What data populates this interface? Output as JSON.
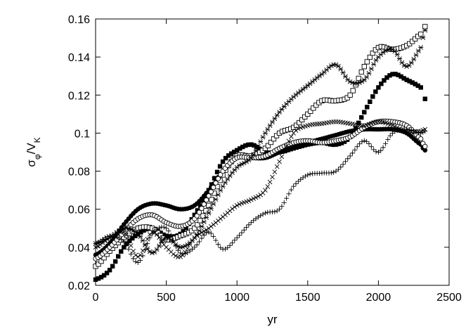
{
  "chart_data": {
    "type": "scatter",
    "title": "",
    "xlabel": "yr",
    "ylabel_main": "σ",
    "ylabel_sub1": "φ",
    "ylabel_mid": "/V",
    "ylabel_sub2": "K",
    "xlim": [
      0,
      2500
    ],
    "ylim": [
      0.02,
      0.16
    ],
    "xticks": [
      0,
      500,
      1000,
      1500,
      2000,
      2500
    ],
    "yticks": [
      0.02,
      0.04,
      0.06,
      0.08,
      0.1,
      0.12,
      0.14,
      0.16
    ],
    "xtick_labels": [
      "0",
      "500",
      "1000",
      "1500",
      "2000",
      "2500"
    ],
    "ytick_labels": [
      "0.02",
      "0.04",
      "0.06",
      "0.08",
      "0.1",
      "0.12",
      "0.14",
      "0.16"
    ],
    "grid": false,
    "series": [
      {
        "marker": "filled-square",
        "x": [
          0,
          100,
          200,
          300,
          400,
          500,
          600,
          700,
          800,
          900,
          1000,
          1100,
          1200,
          1300,
          1400,
          1500,
          1600,
          1700,
          1800,
          1900,
          2000,
          2100,
          2200,
          2300,
          2330
        ],
        "y": [
          0.023,
          0.028,
          0.04,
          0.047,
          0.05,
          0.046,
          0.047,
          0.057,
          0.07,
          0.085,
          0.091,
          0.094,
          0.09,
          0.09,
          0.092,
          0.094,
          0.095,
          0.094,
          0.098,
          0.111,
          0.124,
          0.131,
          0.128,
          0.124,
          0.118
        ]
      },
      {
        "marker": "filled-circle",
        "x": [
          0,
          100,
          200,
          300,
          400,
          500,
          600,
          700,
          800,
          900,
          1000,
          1100,
          1200,
          1300,
          1400,
          1500,
          1600,
          1700,
          1800,
          1900,
          2000,
          2100,
          2200,
          2300,
          2330
        ],
        "y": [
          0.036,
          0.042,
          0.052,
          0.06,
          0.063,
          0.062,
          0.06,
          0.062,
          0.07,
          0.08,
          0.087,
          0.087,
          0.087,
          0.09,
          0.093,
          0.095,
          0.097,
          0.099,
          0.101,
          0.102,
          0.102,
          0.102,
          0.1,
          0.094,
          0.091
        ]
      },
      {
        "marker": "open-square",
        "x": [
          0,
          100,
          200,
          300,
          400,
          500,
          600,
          700,
          800,
          900,
          1000,
          1100,
          1200,
          1300,
          1400,
          1500,
          1600,
          1700,
          1800,
          1900,
          2000,
          2100,
          2200,
          2300,
          2330
        ],
        "y": [
          0.03,
          0.038,
          0.045,
          0.05,
          0.05,
          0.044,
          0.046,
          0.05,
          0.062,
          0.078,
          0.088,
          0.088,
          0.092,
          0.1,
          0.103,
          0.11,
          0.117,
          0.117,
          0.12,
          0.135,
          0.145,
          0.144,
          0.146,
          0.152,
          0.156
        ]
      },
      {
        "marker": "open-circle",
        "x": [
          0,
          100,
          200,
          300,
          400,
          500,
          600,
          700,
          800,
          900,
          1000,
          1100,
          1200,
          1300,
          1400,
          1500,
          1600,
          1700,
          1800,
          1900,
          2000,
          2100,
          2200,
          2300,
          2330
        ],
        "y": [
          0.034,
          0.04,
          0.048,
          0.055,
          0.057,
          0.053,
          0.051,
          0.055,
          0.067,
          0.08,
          0.087,
          0.087,
          0.088,
          0.092,
          0.095,
          0.096,
          0.095,
          0.096,
          0.098,
          0.103,
          0.106,
          0.106,
          0.104,
          0.097,
          0.093
        ]
      },
      {
        "marker": "asterisk",
        "x": [
          0,
          100,
          200,
          300,
          400,
          500,
          600,
          700,
          800,
          900,
          1000,
          1100,
          1200,
          1300,
          1400,
          1500,
          1600,
          1700,
          1800,
          1900,
          2000,
          2100,
          2200,
          2300,
          2330
        ],
        "y": [
          0.042,
          0.045,
          0.05,
          0.047,
          0.037,
          0.045,
          0.04,
          0.045,
          0.058,
          0.072,
          0.082,
          0.087,
          0.1,
          0.111,
          0.119,
          0.125,
          0.131,
          0.136,
          0.127,
          0.128,
          0.14,
          0.144,
          0.135,
          0.145,
          0.154
        ]
      },
      {
        "marker": "cross",
        "x": [
          0,
          100,
          200,
          300,
          400,
          500,
          600,
          700,
          800,
          900,
          1000,
          1100,
          1200,
          1300,
          1400,
          1500,
          1600,
          1700,
          1800,
          1900,
          2000,
          2100,
          2200,
          2300,
          2330
        ],
        "y": [
          0.04,
          0.045,
          0.048,
          0.035,
          0.048,
          0.04,
          0.035,
          0.045,
          0.05,
          0.056,
          0.062,
          0.065,
          0.07,
          0.085,
          0.1,
          0.104,
          0.105,
          0.106,
          0.105,
          0.104,
          0.106,
          0.104,
          0.101,
          0.101,
          0.102
        ]
      },
      {
        "marker": "plus",
        "x": [
          0,
          100,
          200,
          300,
          400,
          500,
          600,
          700,
          800,
          900,
          1000,
          1100,
          1200,
          1300,
          1400,
          1500,
          1600,
          1700,
          1800,
          1900,
          2000,
          2100,
          2200,
          2300,
          2330
        ],
        "y": [
          0.042,
          0.046,
          0.043,
          0.032,
          0.047,
          0.05,
          0.037,
          0.04,
          0.048,
          0.039,
          0.045,
          0.053,
          0.058,
          0.06,
          0.072,
          0.078,
          0.079,
          0.08,
          0.088,
          0.096,
          0.09,
          0.1,
          0.102,
          0.1,
          0.101
        ]
      }
    ]
  }
}
